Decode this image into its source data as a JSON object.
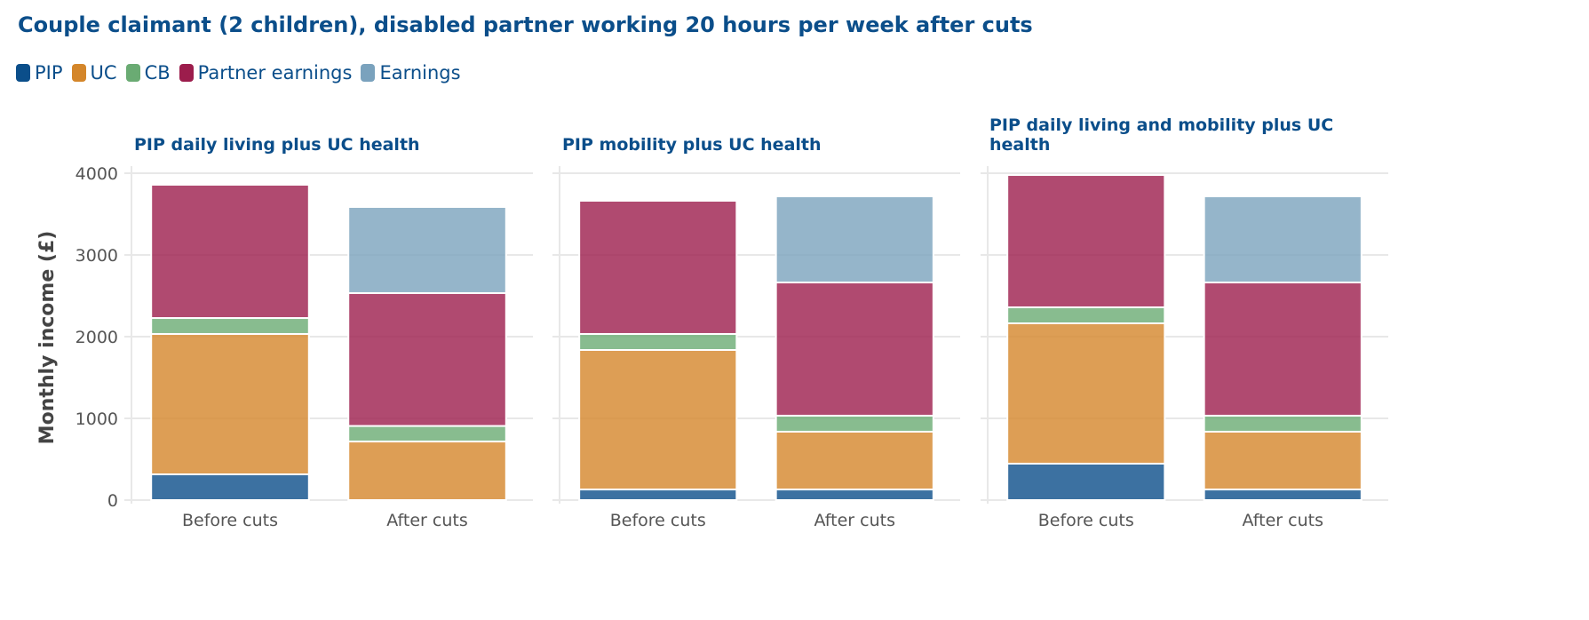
{
  "chart_data": {
    "type": "bar",
    "stacked": true,
    "title": "Couple claimant (2 children), disabled partner working 20 hours per week after cuts",
    "ylabel": "Monthly income (£)",
    "ylim": [
      0,
      4000
    ],
    "yticks": [
      0,
      1000,
      2000,
      3000,
      4000
    ],
    "legend_position": "top-left",
    "series_meta": [
      {
        "name": "PIP",
        "color": "#0b4e8a"
      },
      {
        "name": "UC",
        "color": "#d4862a"
      },
      {
        "name": "CB",
        "color": "#6aab73"
      },
      {
        "name": "Partner earnings",
        "color": "#9c1d4c"
      },
      {
        "name": "Earnings",
        "color": "#7aa2bd"
      }
    ],
    "panels": [
      {
        "title": [
          "PIP daily living plus UC health"
        ],
        "categories": [
          "Before cuts",
          "After cuts"
        ],
        "series": [
          {
            "name": "PIP",
            "values": [
              315,
              0
            ]
          },
          {
            "name": "UC",
            "values": [
              1718,
              717
            ]
          },
          {
            "name": "CB",
            "values": [
              195,
              190
            ]
          },
          {
            "name": "Partner earnings",
            "values": [
              1631,
              1626
            ]
          },
          {
            "name": "Earnings",
            "values": [
              0,
              1054
            ]
          }
        ]
      },
      {
        "title": [
          "PIP mobility plus UC health"
        ],
        "categories": [
          "Before cuts",
          "After cuts"
        ],
        "series": [
          {
            "name": "PIP",
            "values": [
              130,
              130
            ]
          },
          {
            "name": "UC",
            "values": [
              1707,
              707
            ]
          },
          {
            "name": "CB",
            "values": [
              196,
              196
            ]
          },
          {
            "name": "Partner earnings",
            "values": [
              1630,
              1630
            ]
          },
          {
            "name": "Earnings",
            "values": [
              0,
              1054
            ]
          }
        ]
      },
      {
        "title": [
          "PIP daily living and mobility plus UC",
          "health"
        ],
        "categories": [
          "Before cuts",
          "After cuts"
        ],
        "series": [
          {
            "name": "PIP",
            "values": [
              446,
              130
            ]
          },
          {
            "name": "UC",
            "values": [
              1717,
              707
            ]
          },
          {
            "name": "CB",
            "values": [
              196,
              196
            ]
          },
          {
            "name": "Partner earnings",
            "values": [
              1619,
              1630
            ]
          },
          {
            "name": "Earnings",
            "values": [
              0,
              1054
            ]
          }
        ]
      }
    ]
  }
}
